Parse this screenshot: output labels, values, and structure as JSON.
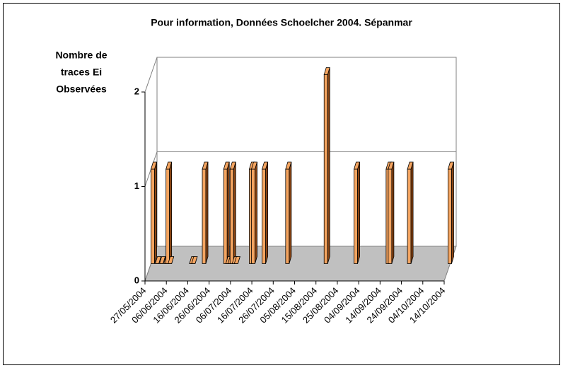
{
  "chart_data": {
    "type": "bar3d",
    "title": "Pour information, Données Schoelcher 2004. Sépanmar",
    "ylabel": [
      "Nombre de",
      "traces Ei",
      "Observées"
    ],
    "x": [
      "27/05/2004",
      "29/05/2004",
      "31/05/2004",
      "02/06/2004",
      "03/06/2004",
      "04/06/2004",
      "14/06/2004",
      "15/06/2004",
      "20/06/2004",
      "30/06/2004",
      "01/07/2004",
      "02/07/2004",
      "03/07/2004",
      "04/07/2004",
      "05/07/2004",
      "12/07/2004",
      "13/07/2004",
      "18/07/2004",
      "29/07/2004",
      "16/08/2004",
      "30/08/2004",
      "14/09/2004",
      "15/09/2004",
      "24/09/2004",
      "13/10/2004"
    ],
    "values": [
      1,
      0,
      0,
      0,
      1,
      0,
      0,
      0,
      1,
      1,
      0,
      0,
      1,
      0,
      0,
      1,
      1,
      1,
      1,
      2,
      1,
      1,
      1,
      1,
      1
    ],
    "color": "#f4a460",
    "xlim": [
      "27/05/2004",
      "14/10/2004"
    ],
    "xticks": [
      "27/05/2004",
      "06/06/2004",
      "16/06/2004",
      "26/06/2004",
      "06/07/2004",
      "16/07/2004",
      "26/07/2004",
      "05/08/2004",
      "15/08/2004",
      "25/08/2004",
      "04/09/2004",
      "14/09/2004",
      "24/09/2004",
      "04/10/2004",
      "14/10/2004"
    ],
    "ylim": [
      0,
      2
    ],
    "yticks": [
      0,
      1,
      2
    ],
    "grid": true
  }
}
